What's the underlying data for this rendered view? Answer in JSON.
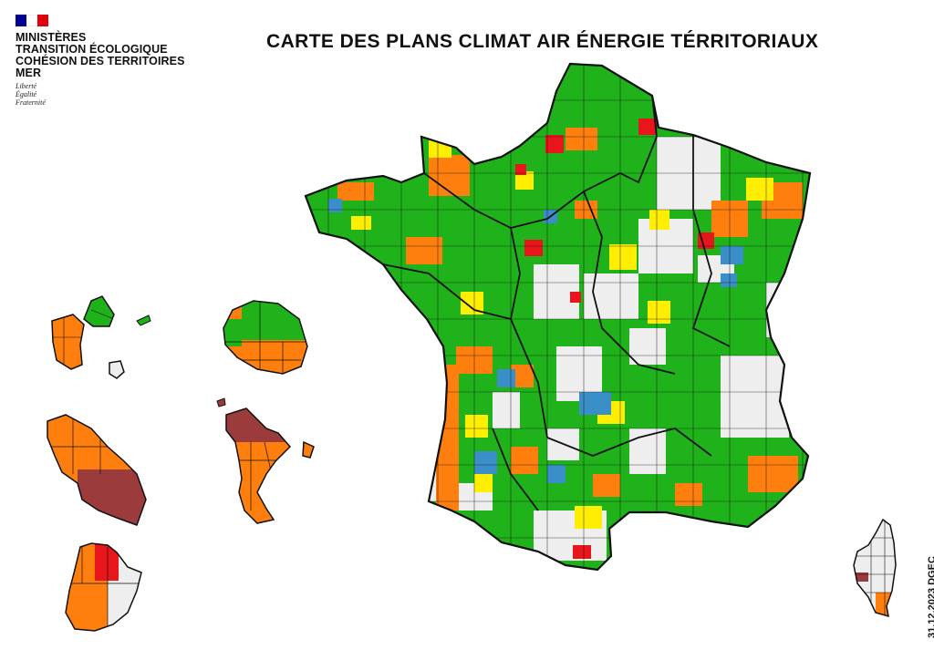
{
  "header": {
    "flag_colors": [
      "#000091",
      "#ffffff",
      "#e1000f"
    ],
    "ministry_lines": [
      "MINISTÈRES",
      "TRANSITION ÉCOLOGIQUE",
      "COHÉSION DES TERRITOIRES",
      "MER"
    ],
    "motto": [
      "Liberté",
      "Égalité",
      "Fraternité"
    ]
  },
  "title": "CARTE DES PLANS CLIMAT AIR ÉNERGIE TÉRRITORIAUX",
  "credit": "31.12.2023 DGEC",
  "map_colors": {
    "green": "#1fb21a",
    "orange": "#ff7f0e",
    "yellow": "#ffee00",
    "blue": "#3a8fc9",
    "red": "#e8161b",
    "brown": "#9c3b3b",
    "grey": "#eeeeee",
    "border": "#111111"
  },
  "territories": [
    "france-metropolitan",
    "guadeloupe",
    "martinique",
    "guyane",
    "reunion",
    "mayotte",
    "corse"
  ]
}
